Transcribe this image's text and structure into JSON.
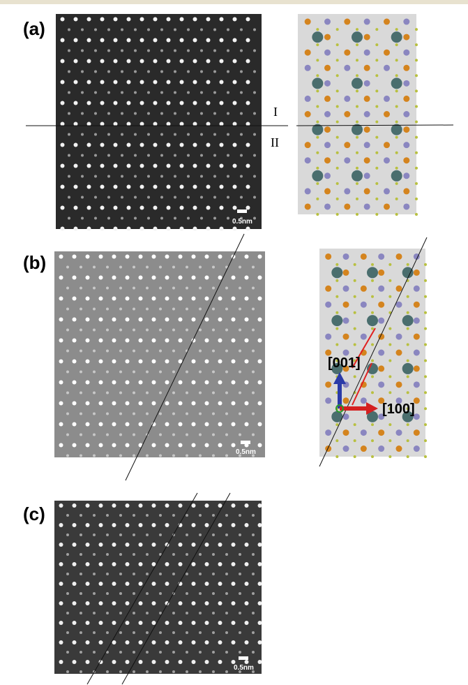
{
  "panels": [
    {
      "label": "(a)",
      "scale_bar": "0.5nm",
      "region_labels": [
        "I",
        "II"
      ]
    },
    {
      "label": "(b)",
      "scale_bar": "0.5nm"
    },
    {
      "label": "(c)",
      "scale_bar": "0.5nm"
    }
  ],
  "axes_legend": {
    "vertical": "[001]",
    "horizontal": "[100]"
  }
}
